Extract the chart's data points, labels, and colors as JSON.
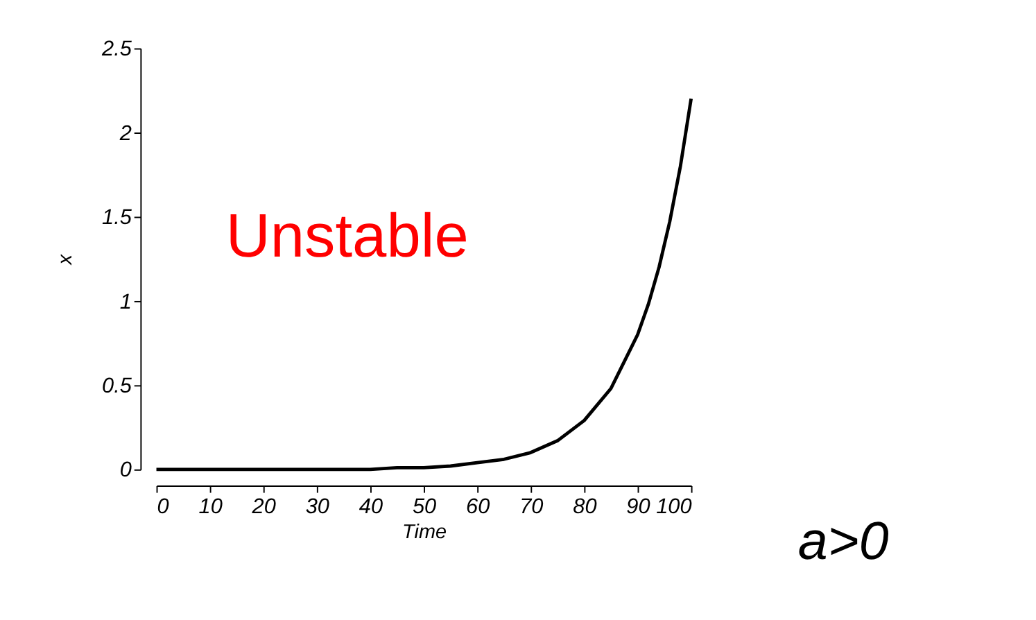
{
  "chart_data": {
    "type": "line",
    "xlabel": "Time",
    "ylabel": "x",
    "x": [
      0,
      10,
      20,
      30,
      40,
      45,
      50,
      55,
      60,
      65,
      70,
      75,
      80,
      85,
      90,
      92,
      94,
      96,
      98,
      100
    ],
    "series": [
      {
        "color": "#000000",
        "values": [
          0,
          0,
          0,
          0,
          0,
          0.01,
          0.01,
          0.02,
          0.04,
          0.06,
          0.1,
          0.17,
          0.29,
          0.48,
          0.8,
          0.98,
          1.2,
          1.47,
          1.8,
          2.2
        ]
      }
    ],
    "xlim": [
      0,
      100
    ],
    "ylim": [
      0,
      2.5
    ],
    "xticks": [
      0,
      10,
      20,
      30,
      40,
      50,
      60,
      70,
      80,
      90,
      100
    ],
    "yticks": [
      0,
      0.5,
      1,
      1.5,
      2,
      2.5
    ],
    "grid": false,
    "legend": false,
    "marker": "none",
    "line_style": "solid",
    "annotations": [
      "Unstable",
      "a>0"
    ]
  }
}
